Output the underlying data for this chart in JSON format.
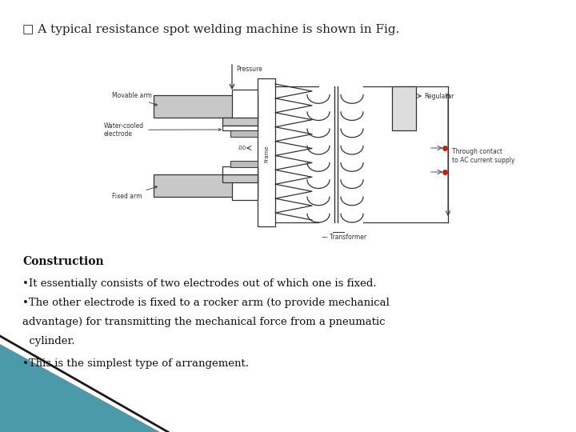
{
  "background_color": "#ffffff",
  "title_text": "□ A typical resistance spot welding machine is shown in Fig.",
  "title_fontsize": 11,
  "title_color": "#222222",
  "section_heading": "Construction",
  "section_heading_fontsize": 10,
  "bullets": [
    "•It essentially consists of two electrodes out of which one is fixed.",
    "•The other electrode is fixed to a rocker arm (to provide mechanical",
    "advantage) for transmitting the mechanical force from a pneumatic",
    "  cylinder.",
    "•This is the simplest type of arrangement."
  ],
  "bullet_fontsize": 9.5,
  "bullet_color": "#111111",
  "teal_wedge_color": "#4a9aaa",
  "dark": "#333333",
  "red": "#cc2200",
  "gray_arm": "#c8c8c8",
  "gray_light": "#e8e8e8"
}
